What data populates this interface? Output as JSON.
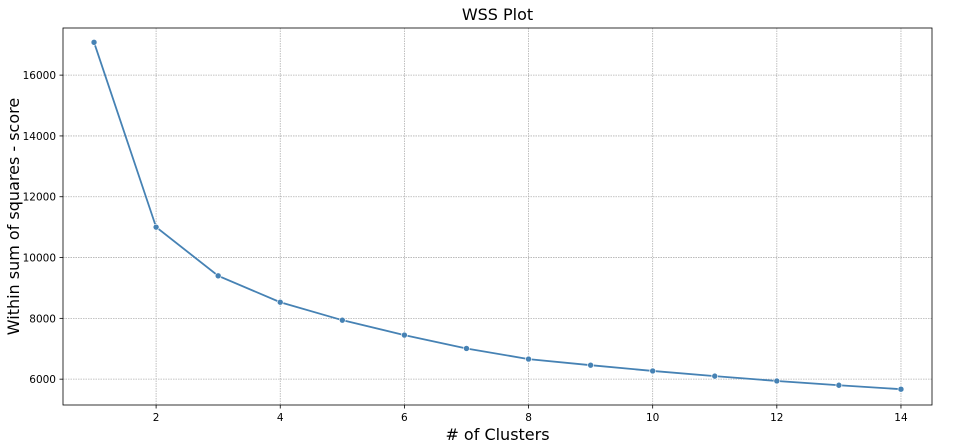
{
  "chart_data": {
    "type": "line",
    "title": "WSS Plot",
    "xlabel": "# of Clusters",
    "ylabel": "Within sum of squares - score",
    "xlim": [
      0.5,
      14.5
    ],
    "ylim": [
      5150,
      17550
    ],
    "x_ticks": [
      2,
      4,
      6,
      8,
      10,
      12,
      14
    ],
    "y_ticks": [
      6000,
      8000,
      10000,
      12000,
      14000,
      16000
    ],
    "grid": true,
    "series": [
      {
        "color": "#4682b4",
        "marker": "circle",
        "x": [
          1,
          2,
          3,
          4,
          5,
          6,
          7,
          8,
          9,
          10,
          11,
          12,
          13,
          14
        ],
        "values": [
          17080,
          11000,
          9400,
          8530,
          7940,
          7450,
          7010,
          6660,
          6460,
          6270,
          6100,
          5940,
          5800,
          5670
        ]
      }
    ]
  }
}
